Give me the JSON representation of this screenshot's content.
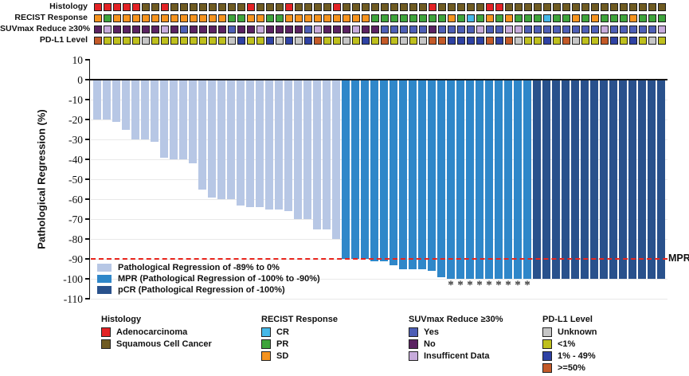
{
  "chart_data": {
    "type": "bar",
    "ylabel": "Pathological Regression (%)",
    "ylim": [
      -110,
      10
    ],
    "yticks": [
      10,
      0,
      -10,
      -20,
      -30,
      -40,
      -50,
      -60,
      -70,
      -80,
      -90,
      -100,
      -110
    ],
    "ytick_labels": [
      "10",
      "0",
      "-10",
      "-20",
      "-30",
      "-40",
      "-50",
      "-60",
      "-70",
      "-80",
      "-90",
      "-100",
      "-110"
    ],
    "grid": true,
    "n_patients": 60,
    "values": [
      -20,
      -20,
      -21,
      -25,
      -30,
      -30,
      -31,
      -39,
      -40,
      -40,
      -42,
      -55,
      -59,
      -60,
      -60,
      -63,
      -64,
      -64,
      -65,
      -65,
      -66,
      -70,
      -70,
      -75,
      -75,
      -80,
      -90,
      -90,
      -90,
      -91,
      -91,
      -93,
      -95,
      -95,
      -95,
      -96,
      -99,
      -100,
      -100,
      -100,
      -100,
      -100,
      -100,
      -100,
      -100,
      -100,
      -100,
      -100,
      -100,
      -100,
      -100,
      -100,
      -100,
      -100,
      -100,
      -100,
      -100,
      -100,
      -100,
      -100
    ],
    "bar_groups": [
      {
        "group": "partial",
        "count": 26
      },
      {
        "group": "mpr",
        "count": 20
      },
      {
        "group": "pcr",
        "count": 14
      }
    ],
    "bar_colors": {
      "partial": "#B7C7E5",
      "mpr": "#2F87C9",
      "pcr": "#29518C"
    },
    "bar_legend": [
      {
        "key": "partial",
        "label": "Pathological Regression of -89% to 0%"
      },
      {
        "key": "mpr",
        "label": "MPR (Pathological Regression of -100% to -90%)"
      },
      {
        "key": "pcr",
        "label": "pCR (Pathological Regression of -100%)"
      }
    ],
    "reference_line": {
      "value": -90,
      "label": "MPR",
      "style": "dashed",
      "color": "#E8241C"
    },
    "asterisk_symbol": "*",
    "asterisk_bar_indices": [
      38,
      39,
      40,
      41,
      42,
      43,
      44,
      45,
      46
    ]
  },
  "annotations": {
    "rows": [
      {
        "key": "histology",
        "label": "Histology",
        "values": [
          "A",
          "A",
          "A",
          "A",
          "A",
          "S",
          "S",
          "A",
          "S",
          "S",
          "S",
          "S",
          "S",
          "S",
          "S",
          "S",
          "A",
          "S",
          "S",
          "S",
          "A",
          "S",
          "S",
          "S",
          "S",
          "A",
          "S",
          "S",
          "S",
          "S",
          "S",
          "S",
          "S",
          "S",
          "S",
          "A",
          "S",
          "S",
          "S",
          "S",
          "S",
          "A",
          "A",
          "S",
          "S",
          "S",
          "S",
          "S",
          "S",
          "S",
          "S",
          "S",
          "S",
          "S",
          "S",
          "S",
          "S",
          "S",
          "S",
          "S"
        ]
      },
      {
        "key": "recist",
        "label": "RECIST Response",
        "values": [
          "SD",
          "PR",
          "SD",
          "SD",
          "SD",
          "SD",
          "SD",
          "SD",
          "SD",
          "SD",
          "SD",
          "SD",
          "SD",
          "SD",
          "PR",
          "PR",
          "SD",
          "SD",
          "PR",
          "PR",
          "SD",
          "SD",
          "SD",
          "SD",
          "SD",
          "SD",
          "SD",
          "SD",
          "SD",
          "PR",
          "PR",
          "PR",
          "PR",
          "PR",
          "PR",
          "PR",
          "PR",
          "SD",
          "PR",
          "CR",
          "PR",
          "SD",
          "PR",
          "SD",
          "PR",
          "PR",
          "PR",
          "CR",
          "PR",
          "PR",
          "SD",
          "PR",
          "SD",
          "PR",
          "PR",
          "PR",
          "SD",
          "PR",
          "PR",
          "PR"
        ]
      },
      {
        "key": "suvmax",
        "label": "SUVmax Reduce ≥30%",
        "values": [
          "N",
          "I",
          "N",
          "N",
          "N",
          "N",
          "N",
          "I",
          "N",
          "Y",
          "N",
          "N",
          "N",
          "N",
          "Y",
          "N",
          "N",
          "I",
          "N",
          "N",
          "N",
          "N",
          "Y",
          "I",
          "N",
          "N",
          "N",
          "I",
          "N",
          "N",
          "Y",
          "Y",
          "Y",
          "Y",
          "Y",
          "N",
          "Y",
          "Y",
          "Y",
          "Y",
          "I",
          "Y",
          "Y",
          "I",
          "I",
          "Y",
          "Y",
          "Y",
          "Y",
          "Y",
          "Y",
          "Y",
          "Y",
          "I",
          "Y",
          "Y",
          "Y",
          "Y",
          "Y",
          "I"
        ]
      },
      {
        "key": "pdl1",
        "label": "PD-L1 Level",
        "values": [
          "H",
          "L",
          "L",
          "L",
          "L",
          "U",
          "L",
          "L",
          "L",
          "L",
          "L",
          "L",
          "L",
          "L",
          "U",
          "M",
          "L",
          "L",
          "M",
          "U",
          "M",
          "U",
          "M",
          "H",
          "L",
          "L",
          "U",
          "L",
          "M",
          "L",
          "H",
          "L",
          "U",
          "L",
          "U",
          "H",
          "H",
          "M",
          "M",
          "M",
          "M",
          "H",
          "M",
          "H",
          "U",
          "L",
          "L",
          "M",
          "L",
          "H",
          "U",
          "L",
          "L",
          "H",
          "M",
          "L",
          "M",
          "L",
          "U",
          "L"
        ]
      }
    ],
    "palette": {
      "histology": {
        "A": "#E32225",
        "S": "#6F5B22"
      },
      "recist": {
        "CR": "#45B8E8",
        "PR": "#3EA43B",
        "SD": "#F5931E"
      },
      "suvmax": {
        "Y": "#4D5EB5",
        "N": "#5A2261",
        "I": "#C7ABDB"
      },
      "pdl1": {
        "U": "#C6C6C6",
        "L": "#BFC01D",
        "M": "#2F42A4",
        "H": "#C45A28"
      }
    }
  },
  "bottom_legend": {
    "groups": [
      {
        "title": "Histology",
        "items": [
          {
            "label": "Adenocarcinoma",
            "color": "#E32225"
          },
          {
            "label": "Squamous Cell Cancer",
            "color": "#6F5B22"
          }
        ]
      },
      {
        "title": "RECIST Response",
        "items": [
          {
            "label": "CR",
            "color": "#45B8E8"
          },
          {
            "label": "PR",
            "color": "#3EA43B"
          },
          {
            "label": "SD",
            "color": "#F5931E"
          }
        ]
      },
      {
        "title": "SUVmax Reduce ≥30%",
        "items": [
          {
            "label": "Yes",
            "color": "#4D5EB5"
          },
          {
            "label": "No",
            "color": "#5A2261"
          },
          {
            "label": "Insufficent Data",
            "color": "#C7ABDB"
          }
        ]
      },
      {
        "title": "PD-L1 Level",
        "items": [
          {
            "label": "Unknown",
            "color": "#C6C6C6"
          },
          {
            "label": "<1%",
            "color": "#BFC01D"
          },
          {
            "label": "1% - 49%",
            "color": "#2F42A4"
          },
          {
            "label": ">=50%",
            "color": "#C45A28"
          }
        ]
      }
    ]
  }
}
